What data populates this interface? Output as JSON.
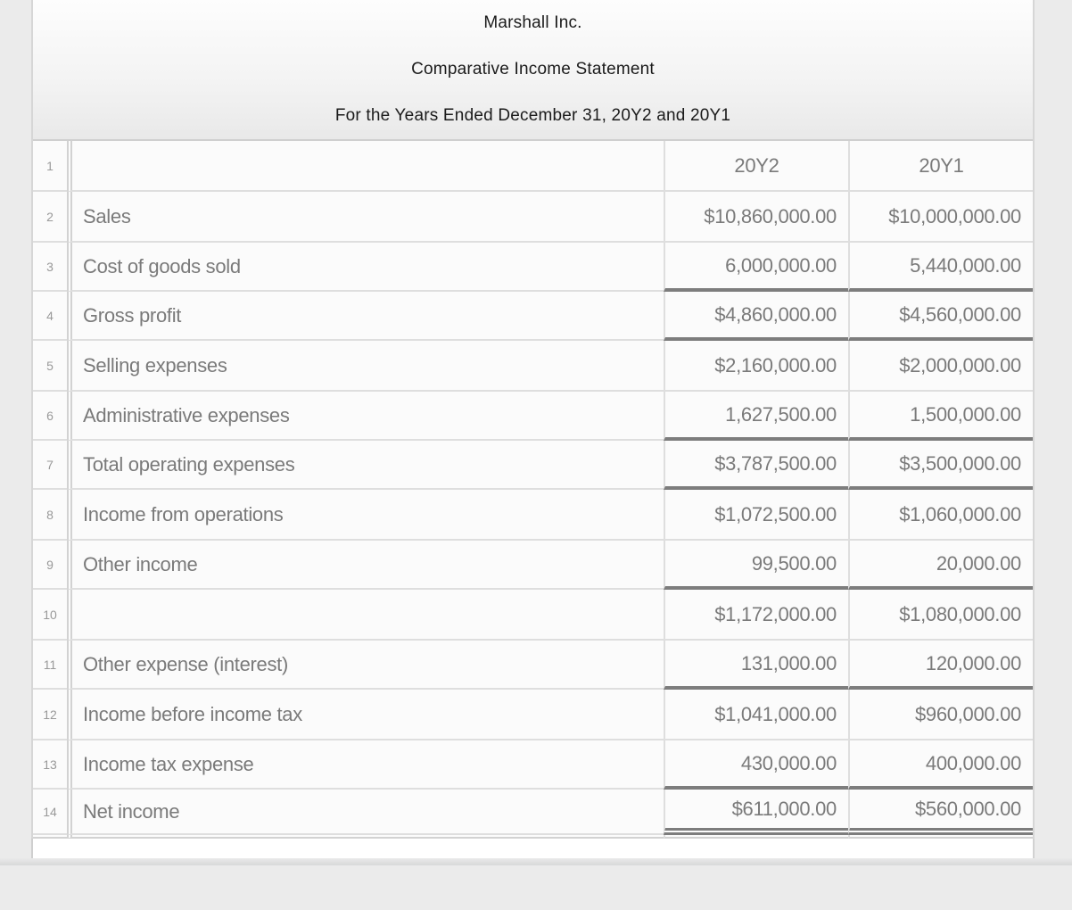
{
  "header": {
    "company": "Marshall Inc.",
    "statement_title": "Comparative Income Statement",
    "period": "For the Years Ended December 31, 20Y2 and 20Y1"
  },
  "table": {
    "column_headers": [
      "20Y2",
      "20Y1"
    ],
    "rows": [
      {
        "num": "1",
        "type": "column-header",
        "label": "",
        "y2": "20Y2",
        "y1": "20Y1",
        "rule": "none"
      },
      {
        "num": "2",
        "label": "Sales",
        "y2": "$10,860,000.00",
        "y1": "$10,000,000.00",
        "rule": "none"
      },
      {
        "num": "3",
        "label": "Cost of goods sold",
        "y2": "6,000,000.00",
        "y1": "5,440,000.00",
        "rule": "single"
      },
      {
        "num": "4",
        "label": "Gross profit",
        "y2": "$4,860,000.00",
        "y1": "$4,560,000.00",
        "rule": "single"
      },
      {
        "num": "5",
        "label": "Selling expenses",
        "y2": "$2,160,000.00",
        "y1": "$2,000,000.00",
        "rule": "none"
      },
      {
        "num": "6",
        "label": "Administrative expenses",
        "y2": "1,627,500.00",
        "y1": "1,500,000.00",
        "rule": "single"
      },
      {
        "num": "7",
        "label": "Total operating expenses",
        "y2": "$3,787,500.00",
        "y1": "$3,500,000.00",
        "rule": "single"
      },
      {
        "num": "8",
        "label": "Income from operations",
        "y2": "$1,072,500.00",
        "y1": "$1,060,000.00",
        "rule": "none"
      },
      {
        "num": "9",
        "label": "Other income",
        "y2": "99,500.00",
        "y1": "20,000.00",
        "rule": "single"
      },
      {
        "num": "10",
        "label": "",
        "y2": "$1,172,000.00",
        "y1": "$1,080,000.00",
        "rule": "none"
      },
      {
        "num": "11",
        "label": "Other expense (interest)",
        "y2": "131,000.00",
        "y1": "120,000.00",
        "rule": "single"
      },
      {
        "num": "12",
        "label": "Income before income tax",
        "y2": "$1,041,000.00",
        "y1": "$960,000.00",
        "rule": "none"
      },
      {
        "num": "13",
        "label": "Income tax expense",
        "y2": "430,000.00",
        "y1": "400,000.00",
        "rule": "single"
      },
      {
        "num": "14",
        "label": "Net income",
        "y2": "$611,000.00",
        "y1": "$560,000.00",
        "rule": "double"
      }
    ]
  },
  "colors": {
    "rule_line": "#7d7d7d",
    "grid_border": "#dedede",
    "cell_text": "#7a7a7a",
    "row_number_text": "#999999",
    "title_text": "#1b1b1b",
    "cell_background": "#fbfbfb",
    "page_background": "#ebebeb"
  }
}
